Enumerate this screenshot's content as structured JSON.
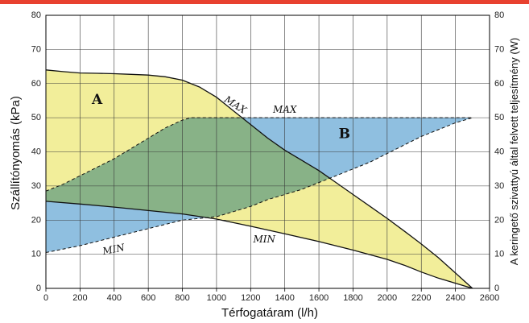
{
  "colors": {
    "accent_bar": "#e8412f",
    "pump_region": "#f2ee9a",
    "power_region": "#8fbfe0",
    "overlap_region": "#bccf94",
    "grid": "#3a3a3a",
    "frame": "#000000"
  },
  "chart_data": {
    "type": "area",
    "title": "",
    "xlabel": "Térfogatáram (l/h)",
    "ylabel": "Szállítónyomás (kPa)",
    "y2label": "A keringető szivattyú által felvett teljesítmény (W)",
    "xlim": [
      0,
      2600
    ],
    "ylim": [
      0,
      80
    ],
    "y2lim": [
      0,
      80
    ],
    "x_ticks": [
      "0",
      "200",
      "400",
      "600",
      "800",
      "1000",
      "1200",
      "1400",
      "1600",
      "1800",
      "2000",
      "2200",
      "2400",
      "2600"
    ],
    "y_ticks": [
      "0",
      "10",
      "20",
      "30",
      "40",
      "50",
      "60",
      "70",
      "80"
    ],
    "y2_ticks": [
      "0",
      "10",
      "20",
      "30",
      "40",
      "50",
      "60",
      "70",
      "80"
    ],
    "grid": true,
    "regions": [
      {
        "label": "A",
        "color": "pump_region",
        "label_at": [
          300,
          54
        ]
      },
      {
        "label": "B",
        "color": "power_region",
        "label_at": [
          1750,
          44
        ]
      }
    ],
    "series": [
      {
        "name": "A MAX",
        "label": "MAX",
        "style": "solid",
        "label_at": [
          1100,
          53
        ],
        "label_rotate": 33,
        "x": [
          0,
          100,
          200,
          300,
          400,
          500,
          600,
          700,
          800,
          900,
          1000,
          1100,
          1200,
          1300,
          1400,
          1500,
          1600,
          1700,
          1800,
          1900,
          2000,
          2100,
          2200,
          2300,
          2400,
          2500
        ],
        "y": [
          64,
          63.5,
          63.1,
          63,
          62.9,
          62.7,
          62.5,
          62,
          61,
          59,
          56,
          52,
          48,
          44,
          40.5,
          37.5,
          34.5,
          31,
          27.5,
          24,
          20.5,
          16.8,
          13,
          9,
          4.5,
          0
        ]
      },
      {
        "name": "A MIN",
        "label": "MIN",
        "style": "solid",
        "label_at": [
          1280,
          13.5
        ],
        "label_rotate": 0,
        "x": [
          0,
          200,
          400,
          600,
          800,
          1000,
          1200,
          1400,
          1600,
          1800,
          2000,
          2100,
          2200,
          2300,
          2400,
          2500
        ],
        "y": [
          25.5,
          24.7,
          23.8,
          22.8,
          21.8,
          20.3,
          18.2,
          16,
          13.7,
          11.2,
          8.5,
          6.8,
          4.8,
          3,
          1.5,
          0
        ]
      },
      {
        "name": "B MAX",
        "label": "MAX",
        "style": "dashed",
        "label_at": [
          1400,
          51.5
        ],
        "label_rotate": 0,
        "x": [
          0,
          100,
          200,
          300,
          400,
          500,
          600,
          700,
          800,
          850,
          900,
          1000,
          1200,
          1400,
          1600,
          1800,
          2000,
          2200,
          2400,
          2500
        ],
        "y": [
          28.5,
          30.5,
          33,
          35.5,
          38,
          41,
          44,
          47,
          49.3,
          50,
          50,
          50,
          50,
          50,
          50,
          50,
          50,
          50,
          50,
          50
        ]
      },
      {
        "name": "B MIN",
        "label": "MIN",
        "style": "dashed",
        "label_at": [
          400,
          10.5
        ],
        "label_rotate": -11,
        "x": [
          0,
          200,
          400,
          600,
          800,
          1000,
          1100,
          1200,
          1300,
          1400,
          1500,
          1600,
          1700,
          1800,
          1900,
          2000,
          2100,
          2200,
          2300,
          2400,
          2500
        ],
        "y": [
          10.5,
          12.5,
          15,
          17.5,
          20,
          21,
          22.5,
          24,
          26,
          27.5,
          29,
          31,
          33,
          35,
          37,
          39.5,
          42,
          44.5,
          46.5,
          48.5,
          50
        ]
      }
    ]
  }
}
